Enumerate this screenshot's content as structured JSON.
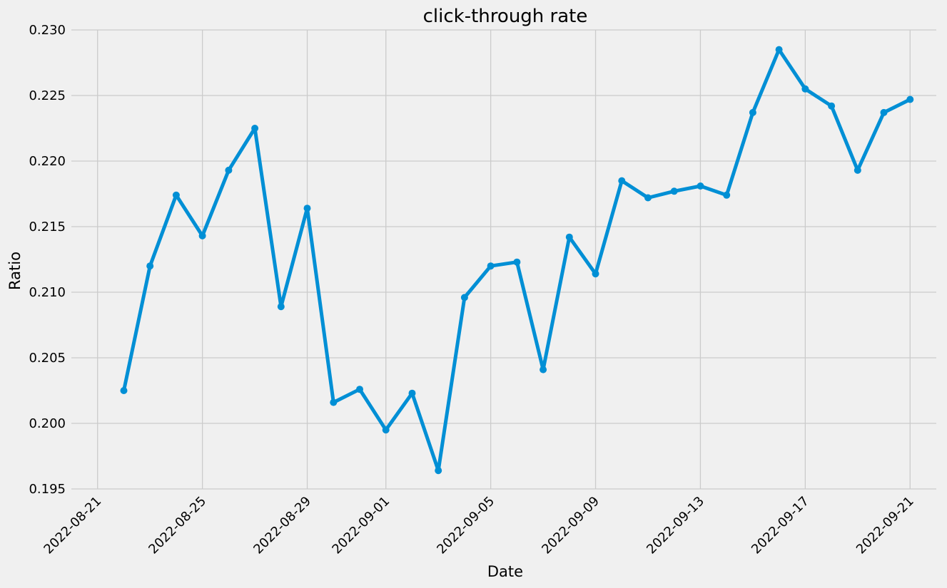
{
  "chart_data": {
    "type": "line",
    "title": "click-through rate",
    "xlabel": "Date",
    "ylabel": "Ratio",
    "x_range": [
      "2022-08-20",
      "2022-09-22"
    ],
    "ylim": [
      0.195,
      0.23
    ],
    "grid": true,
    "y_ticks": [
      "0.195",
      "0.200",
      "0.205",
      "0.210",
      "0.215",
      "0.220",
      "0.225",
      "0.230"
    ],
    "x_ticks": [
      "2022-08-21",
      "2022-08-25",
      "2022-08-29",
      "2022-09-01",
      "2022-09-05",
      "2022-09-09",
      "2022-09-13",
      "2022-09-17",
      "2022-09-21"
    ],
    "color": "#008fd5",
    "series": [
      {
        "x": [
          "2022-08-22",
          "2022-08-23",
          "2022-08-24",
          "2022-08-25",
          "2022-08-26",
          "2022-08-27",
          "2022-08-28",
          "2022-08-29",
          "2022-08-30",
          "2022-08-31",
          "2022-09-01",
          "2022-09-02",
          "2022-09-03",
          "2022-09-04",
          "2022-09-05",
          "2022-09-06",
          "2022-09-07",
          "2022-09-08",
          "2022-09-09",
          "2022-09-10",
          "2022-09-11",
          "2022-09-12",
          "2022-09-13",
          "2022-09-14",
          "2022-09-15",
          "2022-09-16",
          "2022-09-17",
          "2022-09-18",
          "2022-09-19",
          "2022-09-20",
          "2022-09-21"
        ],
        "values": [
          0.2025,
          0.212,
          0.2174,
          0.2143,
          0.2193,
          0.2225,
          0.2089,
          0.2164,
          0.2016,
          0.2026,
          0.1995,
          0.2023,
          0.1964,
          0.2096,
          0.212,
          0.2123,
          0.2041,
          0.2142,
          0.2114,
          0.2185,
          0.2172,
          0.2177,
          0.2181,
          0.2174,
          0.2237,
          0.2285,
          0.2255,
          0.2242,
          0.2193,
          0.2237,
          0.2247
        ]
      }
    ]
  }
}
